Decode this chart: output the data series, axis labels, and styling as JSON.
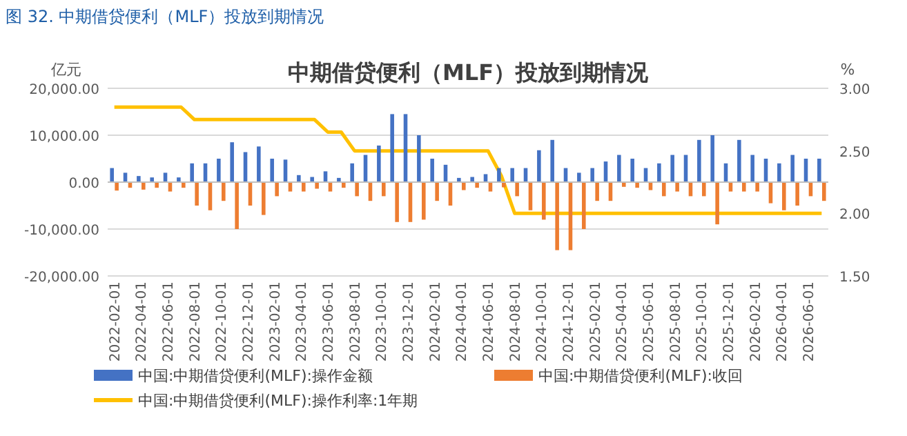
{
  "chart_data": {
    "type": "bar",
    "title": "中期借贷便利（MLF）投放到期情况",
    "annotations": [
      "图 32. 中期借贷便利（MLF）投放到期情况"
    ],
    "ylabel": "亿元",
    "y2label": "%",
    "categories": [
      "2022-02-01",
      null,
      "2022-04-01",
      null,
      "2022-06-01",
      null,
      "2022-08-01",
      null,
      "2022-10-01",
      null,
      "2022-12-01",
      null,
      "2023-02-01",
      null,
      "2023-04-01",
      null,
      "2023-06-01",
      null,
      "2023-08-01",
      null,
      "2023-10-01",
      null,
      "2023-12-01",
      null,
      "2024-02-01",
      null,
      "2024-04-01",
      null,
      "2024-06-01",
      null,
      "2024-08-01",
      null,
      "2024-10-01",
      null,
      "2024-12-01",
      null,
      "2025-02-01",
      null,
      "2025-04-01",
      null,
      "2025-06-01",
      null,
      "2025-08-01",
      null,
      "2025-10-01",
      null,
      "2025-12-01",
      null,
      "2026-02-01",
      null,
      "2026-04-01",
      null,
      "2026-06-01",
      null
    ],
    "series": [
      {
        "name": "中国:中期借贷便利(MLF):操作金额",
        "color": "#4472c4",
        "values": [
          3000,
          2000,
          1300,
          1000,
          2000,
          1000,
          4000,
          4000,
          5000,
          8500,
          6400,
          7600,
          5000,
          4800,
          1500,
          1100,
          2300,
          900,
          4000,
          5800,
          7800,
          14500,
          14500,
          10000,
          5000,
          3700,
          900,
          1100,
          1700,
          3000,
          3000,
          3000,
          6800,
          9000,
          3000,
          2000,
          3000,
          4400,
          5800,
          5000,
          3000,
          4000,
          5800,
          5800,
          9000,
          10000,
          4000,
          9000,
          5800,
          5000,
          4000,
          5800,
          5000,
          5000
        ]
      },
      {
        "name": "中国:中期借贷便利(MLF):收回",
        "color": "#ed7d31",
        "values": [
          -1800,
          -1200,
          -1600,
          -1200,
          -2000,
          -1200,
          -5000,
          -6000,
          -4000,
          -10000,
          -5000,
          -7000,
          -3000,
          -2000,
          -2000,
          -1400,
          -2000,
          -1200,
          -3000,
          -4000,
          -3000,
          -8500,
          -8500,
          -8000,
          -4000,
          -5000,
          -1700,
          -1200,
          -2000,
          -1100,
          -3000,
          -6000,
          -8000,
          -14500,
          -14500,
          -10000,
          -4000,
          -4000,
          -1000,
          -1200,
          -1700,
          -3000,
          -2000,
          -3000,
          -3000,
          -9000,
          -2000,
          -2000,
          -2000,
          -4500,
          -6000,
          -5000,
          -3000,
          -4000
        ]
      },
      {
        "name": "中国:中期借贷便利(MLF):操作利率:1年期",
        "type": "line",
        "axis": "y2",
        "color": "#ffc000",
        "values": [
          2.85,
          2.85,
          2.85,
          2.85,
          2.85,
          2.85,
          2.75,
          2.75,
          2.75,
          2.75,
          2.75,
          2.75,
          2.75,
          2.75,
          2.75,
          2.75,
          2.65,
          2.65,
          2.5,
          2.5,
          2.5,
          2.5,
          2.5,
          2.5,
          2.5,
          2.5,
          2.5,
          2.5,
          2.5,
          2.3,
          2.0,
          2.0,
          2.0,
          2.0,
          2.0,
          2.0,
          2.0,
          2.0,
          2.0,
          2.0,
          2.0,
          2.0,
          2.0,
          2.0,
          2.0,
          2.0,
          2.0,
          2.0,
          2.0,
          2.0,
          2.0,
          2.0,
          2.0,
          2.0
        ]
      }
    ],
    "ylim": [
      -20000,
      20000
    ],
    "yticks": [
      {
        "value": -20000,
        "label": "-20,000.00"
      },
      {
        "value": -10000,
        "label": "-10,000.00"
      },
      {
        "value": 0,
        "label": "0.00"
      },
      {
        "value": 10000,
        "label": "10,000.00"
      },
      {
        "value": 20000,
        "label": "20,000.00"
      }
    ],
    "y2lim": [
      1.5,
      3.0
    ],
    "y2ticks": [
      {
        "value": 1.5,
        "label": "1.50"
      },
      {
        "value": 2.0,
        "label": "2.00"
      },
      {
        "value": 2.5,
        "label": "2.50"
      },
      {
        "value": 3.0,
        "label": "3.00"
      }
    ],
    "grid": "y",
    "legend": "bottom",
    "marker": "none"
  }
}
